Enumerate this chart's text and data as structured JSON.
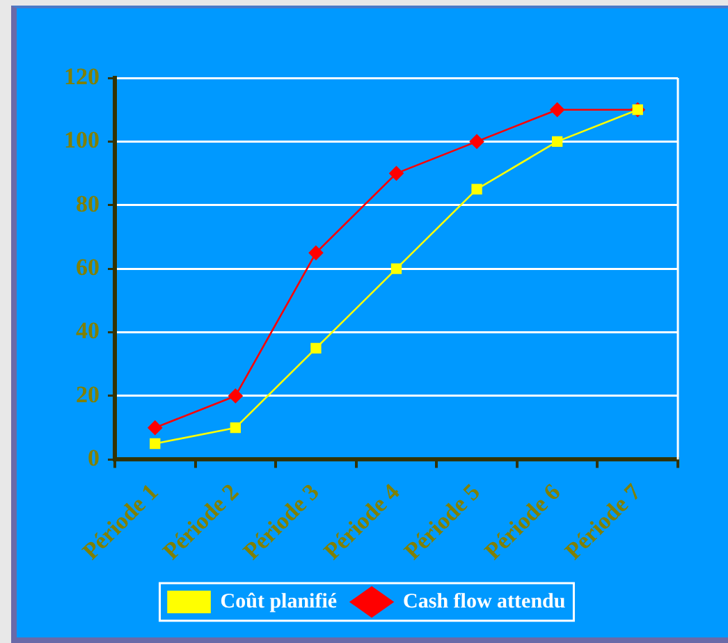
{
  "chart_data": {
    "type": "line",
    "categories": [
      "Période 1",
      "Période 2",
      "Période 3",
      "Période 4",
      "Période 5",
      "Période 6",
      "Période 7"
    ],
    "series": [
      {
        "name": "Cash flow attendu",
        "color": "#ff0000",
        "marker": "diamond",
        "values": [
          10,
          20,
          65,
          90,
          100,
          110,
          110
        ]
      },
      {
        "name": "Coût planifié",
        "color": "#ffff00",
        "marker": "square",
        "values": [
          5,
          10,
          35,
          60,
          85,
          100,
          110
        ]
      }
    ],
    "ylim": [
      0,
      120
    ],
    "yticks": [
      0,
      20,
      40,
      60,
      80,
      100,
      120
    ],
    "grid": "y",
    "legend": "bottom"
  }
}
